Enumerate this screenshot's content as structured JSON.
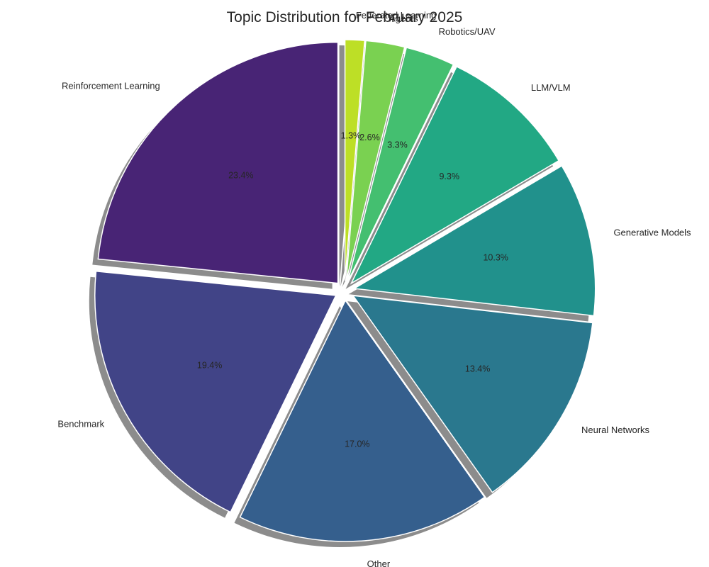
{
  "chart_data": {
    "type": "pie",
    "title": "Topic Distribution for February 2025",
    "start_angle_deg": 90,
    "direction": "counterclockwise",
    "shadow": true,
    "exploded": true,
    "slices": [
      {
        "label": "Reinforcement Learning",
        "value": 23.4,
        "pct_text": "23.4%",
        "color": "#482475"
      },
      {
        "label": "Benchmark",
        "value": 19.4,
        "pct_text": "19.4%",
        "color": "#414487"
      },
      {
        "label": "Other",
        "value": 17.0,
        "pct_text": "17.0%",
        "color": "#355f8d"
      },
      {
        "label": "Neural Networks",
        "value": 13.4,
        "pct_text": "13.4%",
        "color": "#2a788e"
      },
      {
        "label": "Generative Models",
        "value": 10.3,
        "pct_text": "10.3%",
        "color": "#21918c"
      },
      {
        "label": "LLM/VLM",
        "value": 9.3,
        "pct_text": "9.3%",
        "color": "#22a884"
      },
      {
        "label": "Robotics/UAV",
        "value": 3.3,
        "pct_text": "3.3%",
        "color": "#44bf70"
      },
      {
        "label": "Agents",
        "value": 2.6,
        "pct_text": "2.6%",
        "color": "#7ad151"
      },
      {
        "label": "Federated Learning",
        "value": 1.3,
        "pct_text": "1.3%",
        "color": "#bddf26"
      }
    ]
  }
}
